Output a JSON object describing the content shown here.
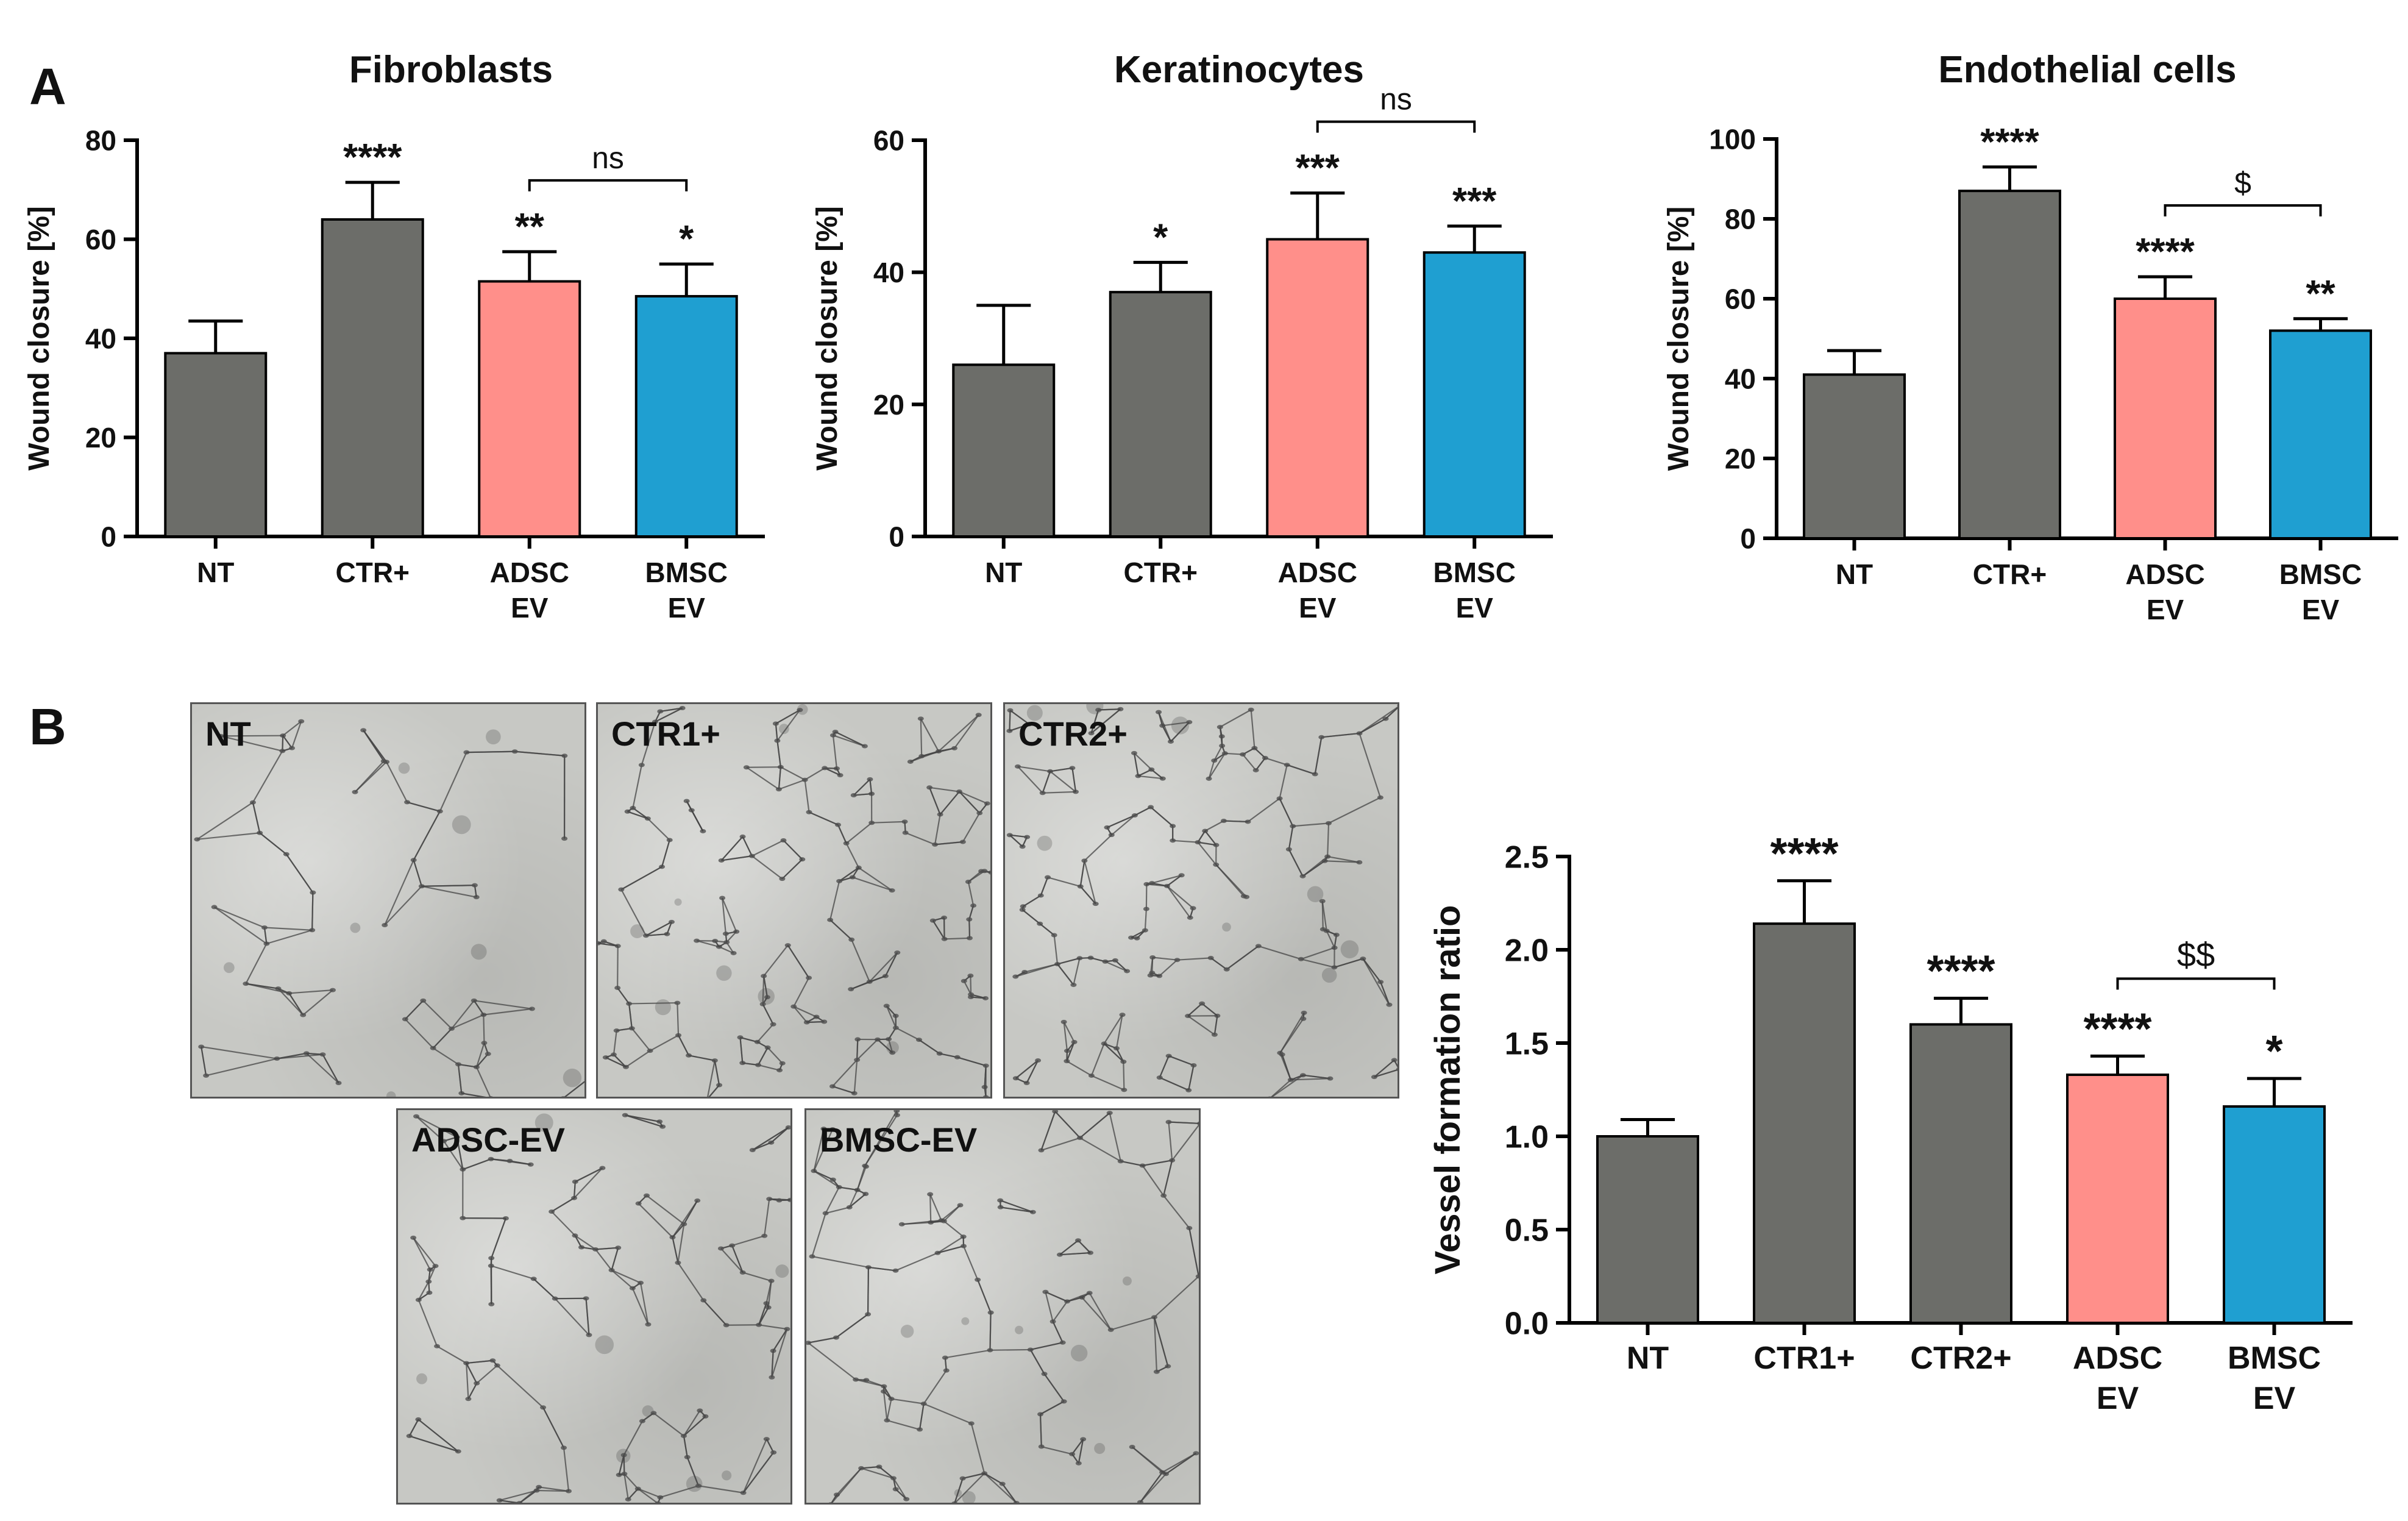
{
  "panel_labels": {
    "a": "A",
    "b": "B"
  },
  "colors": {
    "gray": "#6c6d69",
    "pink": "#ff8f8a",
    "blue": "#1f9fd1"
  },
  "micrographs": [
    {
      "label": "NT",
      "density": "low"
    },
    {
      "label": "CTR1+",
      "density": "high"
    },
    {
      "label": "CTR2+",
      "density": "high"
    },
    {
      "label": "ADSC-EV",
      "density": "medium"
    },
    {
      "label": "BMSC-EV",
      "density": "medium"
    }
  ],
  "chart_data": [
    {
      "type": "bar",
      "title": "Fibroblasts",
      "ylabel": "Wound closure [%]",
      "xlabel": "",
      "categories": [
        "NT",
        "CTR+",
        "ADSC EV",
        "BMSC EV"
      ],
      "values": [
        37,
        64,
        51.5,
        48.5
      ],
      "errors": [
        6.5,
        7.5,
        6,
        6.5
      ],
      "bar_colors": [
        "gray",
        "gray",
        "pink",
        "blue"
      ],
      "significance": [
        "",
        "****",
        "**",
        "*"
      ],
      "ylim": [
        0,
        80
      ],
      "yticks": [
        0,
        20,
        40,
        60,
        80
      ],
      "comparison": {
        "from": 2,
        "to": 3,
        "label": "ns"
      }
    },
    {
      "type": "bar",
      "title": "Keratinocytes",
      "ylabel": "Wound closure [%]",
      "xlabel": "",
      "categories": [
        "NT",
        "CTR+",
        "ADSC EV",
        "BMSC EV"
      ],
      "values": [
        26,
        37,
        45,
        43
      ],
      "errors": [
        9,
        4.5,
        7,
        4
      ],
      "bar_colors": [
        "gray",
        "gray",
        "pink",
        "blue"
      ],
      "significance": [
        "",
        "*",
        "***",
        "***"
      ],
      "ylim": [
        0,
        60
      ],
      "yticks": [
        0,
        20,
        40,
        60
      ],
      "comparison": {
        "from": 2,
        "to": 3,
        "label": "ns"
      }
    },
    {
      "type": "bar",
      "title": "Endothelial cells",
      "ylabel": "Wound closure [%]",
      "xlabel": "",
      "categories": [
        "NT",
        "CTR+",
        "ADSC EV",
        "BMSC EV"
      ],
      "values": [
        41,
        87,
        60,
        52
      ],
      "errors": [
        6,
        6,
        5.5,
        3
      ],
      "bar_colors": [
        "gray",
        "gray",
        "pink",
        "blue"
      ],
      "significance": [
        "",
        "****",
        "****",
        "**"
      ],
      "ylim": [
        0,
        100
      ],
      "yticks": [
        0,
        20,
        40,
        60,
        80,
        100
      ],
      "comparison": {
        "from": 2,
        "to": 3,
        "label": "$"
      }
    },
    {
      "type": "bar",
      "title": "",
      "ylabel": "Vessel formation ratio",
      "xlabel": "",
      "categories": [
        "NT",
        "CTR1+",
        "CTR2+",
        "ADSC EV",
        "BMSC EV"
      ],
      "values": [
        1.0,
        2.14,
        1.6,
        1.33,
        1.16
      ],
      "errors": [
        0.09,
        0.23,
        0.14,
        0.1,
        0.15
      ],
      "bar_colors": [
        "gray",
        "gray",
        "gray",
        "pink",
        "blue"
      ],
      "significance": [
        "",
        "****",
        "****",
        "****",
        "*"
      ],
      "ylim": [
        0,
        2.5
      ],
      "yticks": [
        "0.0",
        "0.5",
        "1.0",
        "1.5",
        "2.0",
        "2.5"
      ],
      "comparison": {
        "from": 3,
        "to": 4,
        "label": "$$"
      }
    }
  ]
}
